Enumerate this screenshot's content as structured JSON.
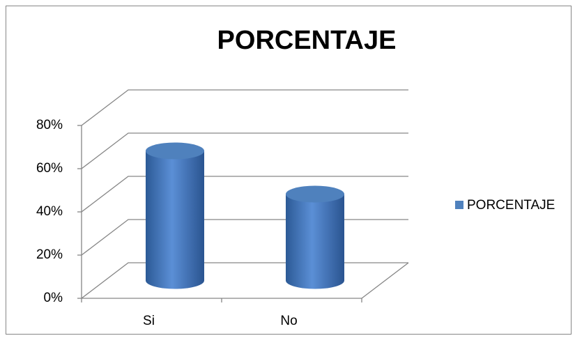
{
  "chart_data": {
    "type": "bar",
    "title": "PORCENTAJE",
    "categories": [
      "Si",
      "No"
    ],
    "series": [
      {
        "name": "PORCENTAJE",
        "color": "#4f81bd",
        "values": [
          60,
          40
        ]
      }
    ],
    "ylim": [
      0,
      80
    ],
    "yticks": [
      {
        "value": 0,
        "label": "0%"
      },
      {
        "value": 20,
        "label": "20%"
      },
      {
        "value": 40,
        "label": "40%"
      },
      {
        "value": 60,
        "label": "60%"
      },
      {
        "value": 80,
        "label": "80%"
      }
    ],
    "grid": true,
    "legend": "right"
  }
}
